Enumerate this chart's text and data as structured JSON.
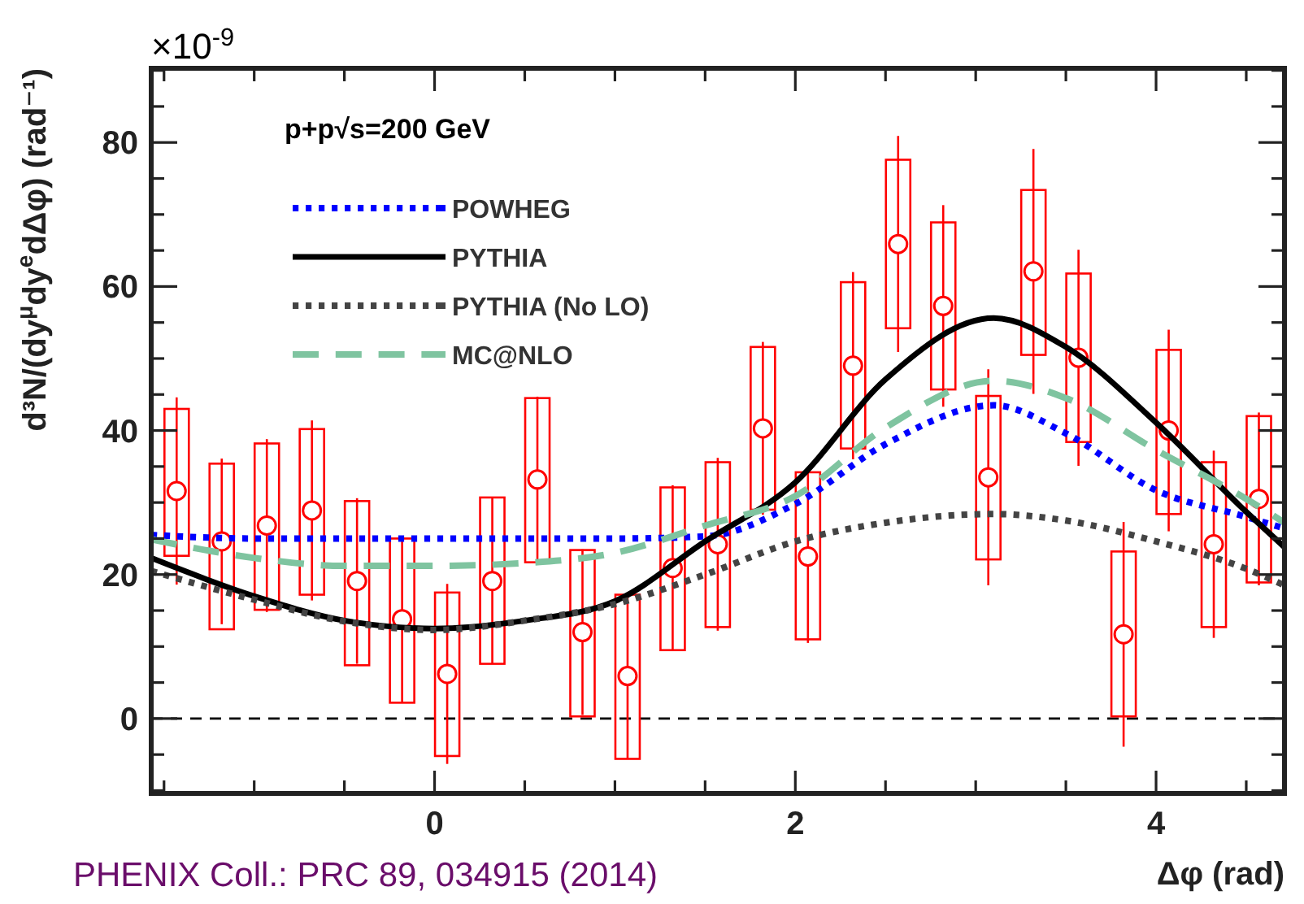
{
  "chart_data": {
    "type": "line",
    "xlabel": "Δφ (rad)",
    "ylabel": "d³N/(dy$^{μ}$dy$^{e}$dΔφ) (rad⁻¹)",
    "annotations": [
      "×10$^{-9}$",
      "p+p√s=200 GeV",
      "PHENIX Coll.: PRC 89, 034915 (2014)"
    ],
    "xlim": [
      -1.571,
      4.712
    ],
    "ylim": [
      -10.4,
      90.3
    ],
    "xticks": [
      {
        "value": -1.5,
        "label": null
      },
      {
        "value": -1,
        "label": null
      },
      {
        "value": -0.5,
        "label": null
      },
      0,
      {
        "value": 0.5,
        "label": null
      },
      {
        "value": 1,
        "label": null
      },
      {
        "value": 1.5,
        "label": null
      },
      2,
      {
        "value": 2.5,
        "label": null
      },
      {
        "value": 3,
        "label": null
      },
      {
        "value": 3.5,
        "label": null
      },
      4,
      {
        "value": 4.5,
        "label": null
      }
    ],
    "yticks": [
      {
        "value": -10,
        "label": null
      },
      {
        "value": -5,
        "label": null
      },
      0,
      {
        "value": 5,
        "label": null
      },
      {
        "value": 10,
        "label": null
      },
      {
        "value": 15,
        "label": null
      },
      20,
      {
        "value": 25,
        "label": null
      },
      {
        "value": 30,
        "label": null
      },
      {
        "value": 35,
        "label": null
      },
      40,
      {
        "value": 45,
        "label": null
      },
      {
        "value": 50,
        "label": null
      },
      {
        "value": 55,
        "label": null
      },
      60,
      {
        "value": 65,
        "label": null
      },
      {
        "value": 70,
        "label": null
      },
      {
        "value": 75,
        "label": null
      },
      80,
      {
        "value": 85,
        "label": null
      },
      {
        "value": 90,
        "label": null
      }
    ],
    "grid": false,
    "legend": "top left",
    "ref_lines": [
      {
        "axis": "y",
        "value": 0,
        "color": "#000000",
        "line_style": "dashed"
      }
    ],
    "series": [
      {
        "type": "bar",
        "color": "#ff0000",
        "x": [
          -1.43,
          -1.18,
          -0.93,
          -0.68,
          -0.43,
          -0.18,
          0.07,
          0.32,
          0.57,
          0.82,
          1.07,
          1.32,
          1.57,
          1.82,
          2.07,
          2.32,
          2.57,
          2.82,
          3.07,
          3.32,
          3.57,
          3.82,
          4.07,
          4.32,
          4.57
        ],
        "base": [
          22.6,
          12.4,
          15.1,
          17.2,
          7.4,
          2.2,
          -5.2,
          7.6,
          21.7,
          0.3,
          -5.6,
          9.5,
          12.7,
          29.0,
          11.0,
          37.5,
          54.2,
          45.7,
          22.1,
          50.5,
          38.4,
          0.3,
          28.4,
          12.7,
          18.9
        ],
        "values": [
          20.4,
          23,
          23.1,
          23,
          22.8,
          22.8,
          22.7,
          23.1,
          22.8,
          23.1,
          22.8,
          22.6,
          22.9,
          22.6,
          23.2,
          23.1,
          23.4,
          23.2,
          22.7,
          22.9,
          23.4,
          22.9,
          22.8,
          22.9,
          23.1
        ]
      },
      {
        "type": "scatter",
        "color": "#ff0000",
        "marker": "circle",
        "x": [
          -1.43,
          -1.18,
          -0.93,
          -0.68,
          -0.43,
          -0.18,
          0.07,
          0.32,
          0.57,
          0.82,
          1.07,
          1.32,
          1.57,
          1.82,
          2.07,
          2.32,
          2.57,
          2.82,
          3.07,
          3.32,
          3.57,
          3.82,
          4.07,
          4.32,
          4.57
        ],
        "values": [
          31.6,
          24.6,
          26.8,
          28.9,
          19.1,
          13.8,
          6.2,
          19.1,
          33.2,
          12.0,
          5.9,
          20.9,
          24.2,
          40.3,
          22.5,
          49.0,
          65.9,
          57.3,
          33.5,
          62.1,
          50.1,
          11.7,
          40.0,
          24.2,
          30.5
        ],
        "errors": [
          13,
          11.5,
          12,
          12.5,
          11.5,
          11.5,
          12.5,
          11.5,
          11.5,
          11.5,
          11.5,
          11.5,
          12,
          12,
          12,
          13,
          15,
          14,
          15,
          17,
          15,
          15.6,
          14,
          13,
          12
        ]
      },
      {
        "name": "POWHEG",
        "color": "#0000ff",
        "line_style": "dotted",
        "x": [
          -1.571,
          -1,
          0,
          1,
          1.5,
          2,
          2.5,
          3.1,
          3.5,
          4,
          4.5,
          4.712
        ],
        "values": [
          25.5,
          25,
          25,
          25,
          25.3,
          29.8,
          38.1,
          43.5,
          39.6,
          31.7,
          28,
          26.4
        ]
      },
      {
        "name": "PYTHIA",
        "color": "#000000",
        "line_style": "solid",
        "x": [
          -1.571,
          -1,
          -0.5,
          0,
          0.5,
          1,
          1.5,
          2,
          2.5,
          3.1,
          3.5,
          4,
          4.5,
          4.712
        ],
        "values": [
          22.3,
          17,
          13.6,
          12.5,
          13.6,
          16.3,
          24.6,
          32.8,
          47.1,
          55.6,
          51.6,
          41.1,
          28.7,
          23.8
        ]
      },
      {
        "name": "PYTHIA (No LO)",
        "color": "#444444",
        "line_style": "dotted",
        "x": [
          -1.571,
          -1,
          -0.5,
          0,
          0.5,
          1,
          1.5,
          2,
          2.5,
          3.1,
          3.5,
          4,
          4.5,
          4.712
        ],
        "values": [
          20.5,
          16.5,
          13.5,
          12.3,
          13.6,
          15.9,
          20,
          24.6,
          27.2,
          28.4,
          27.5,
          24.6,
          20.8,
          18.5
        ]
      },
      {
        "name": "MC@NLO",
        "color": "#7fc4a0",
        "line_style": "dashed",
        "x": [
          -1.571,
          -1,
          -0.5,
          0,
          0.5,
          1,
          1.5,
          2,
          2.5,
          3.1,
          3.5,
          4,
          4.5,
          4.712
        ],
        "values": [
          24.9,
          22.3,
          21.2,
          21.2,
          21.6,
          23,
          26.8,
          30.9,
          40.4,
          46.9,
          44.5,
          37.3,
          30.5,
          27.2
        ]
      }
    ]
  }
}
